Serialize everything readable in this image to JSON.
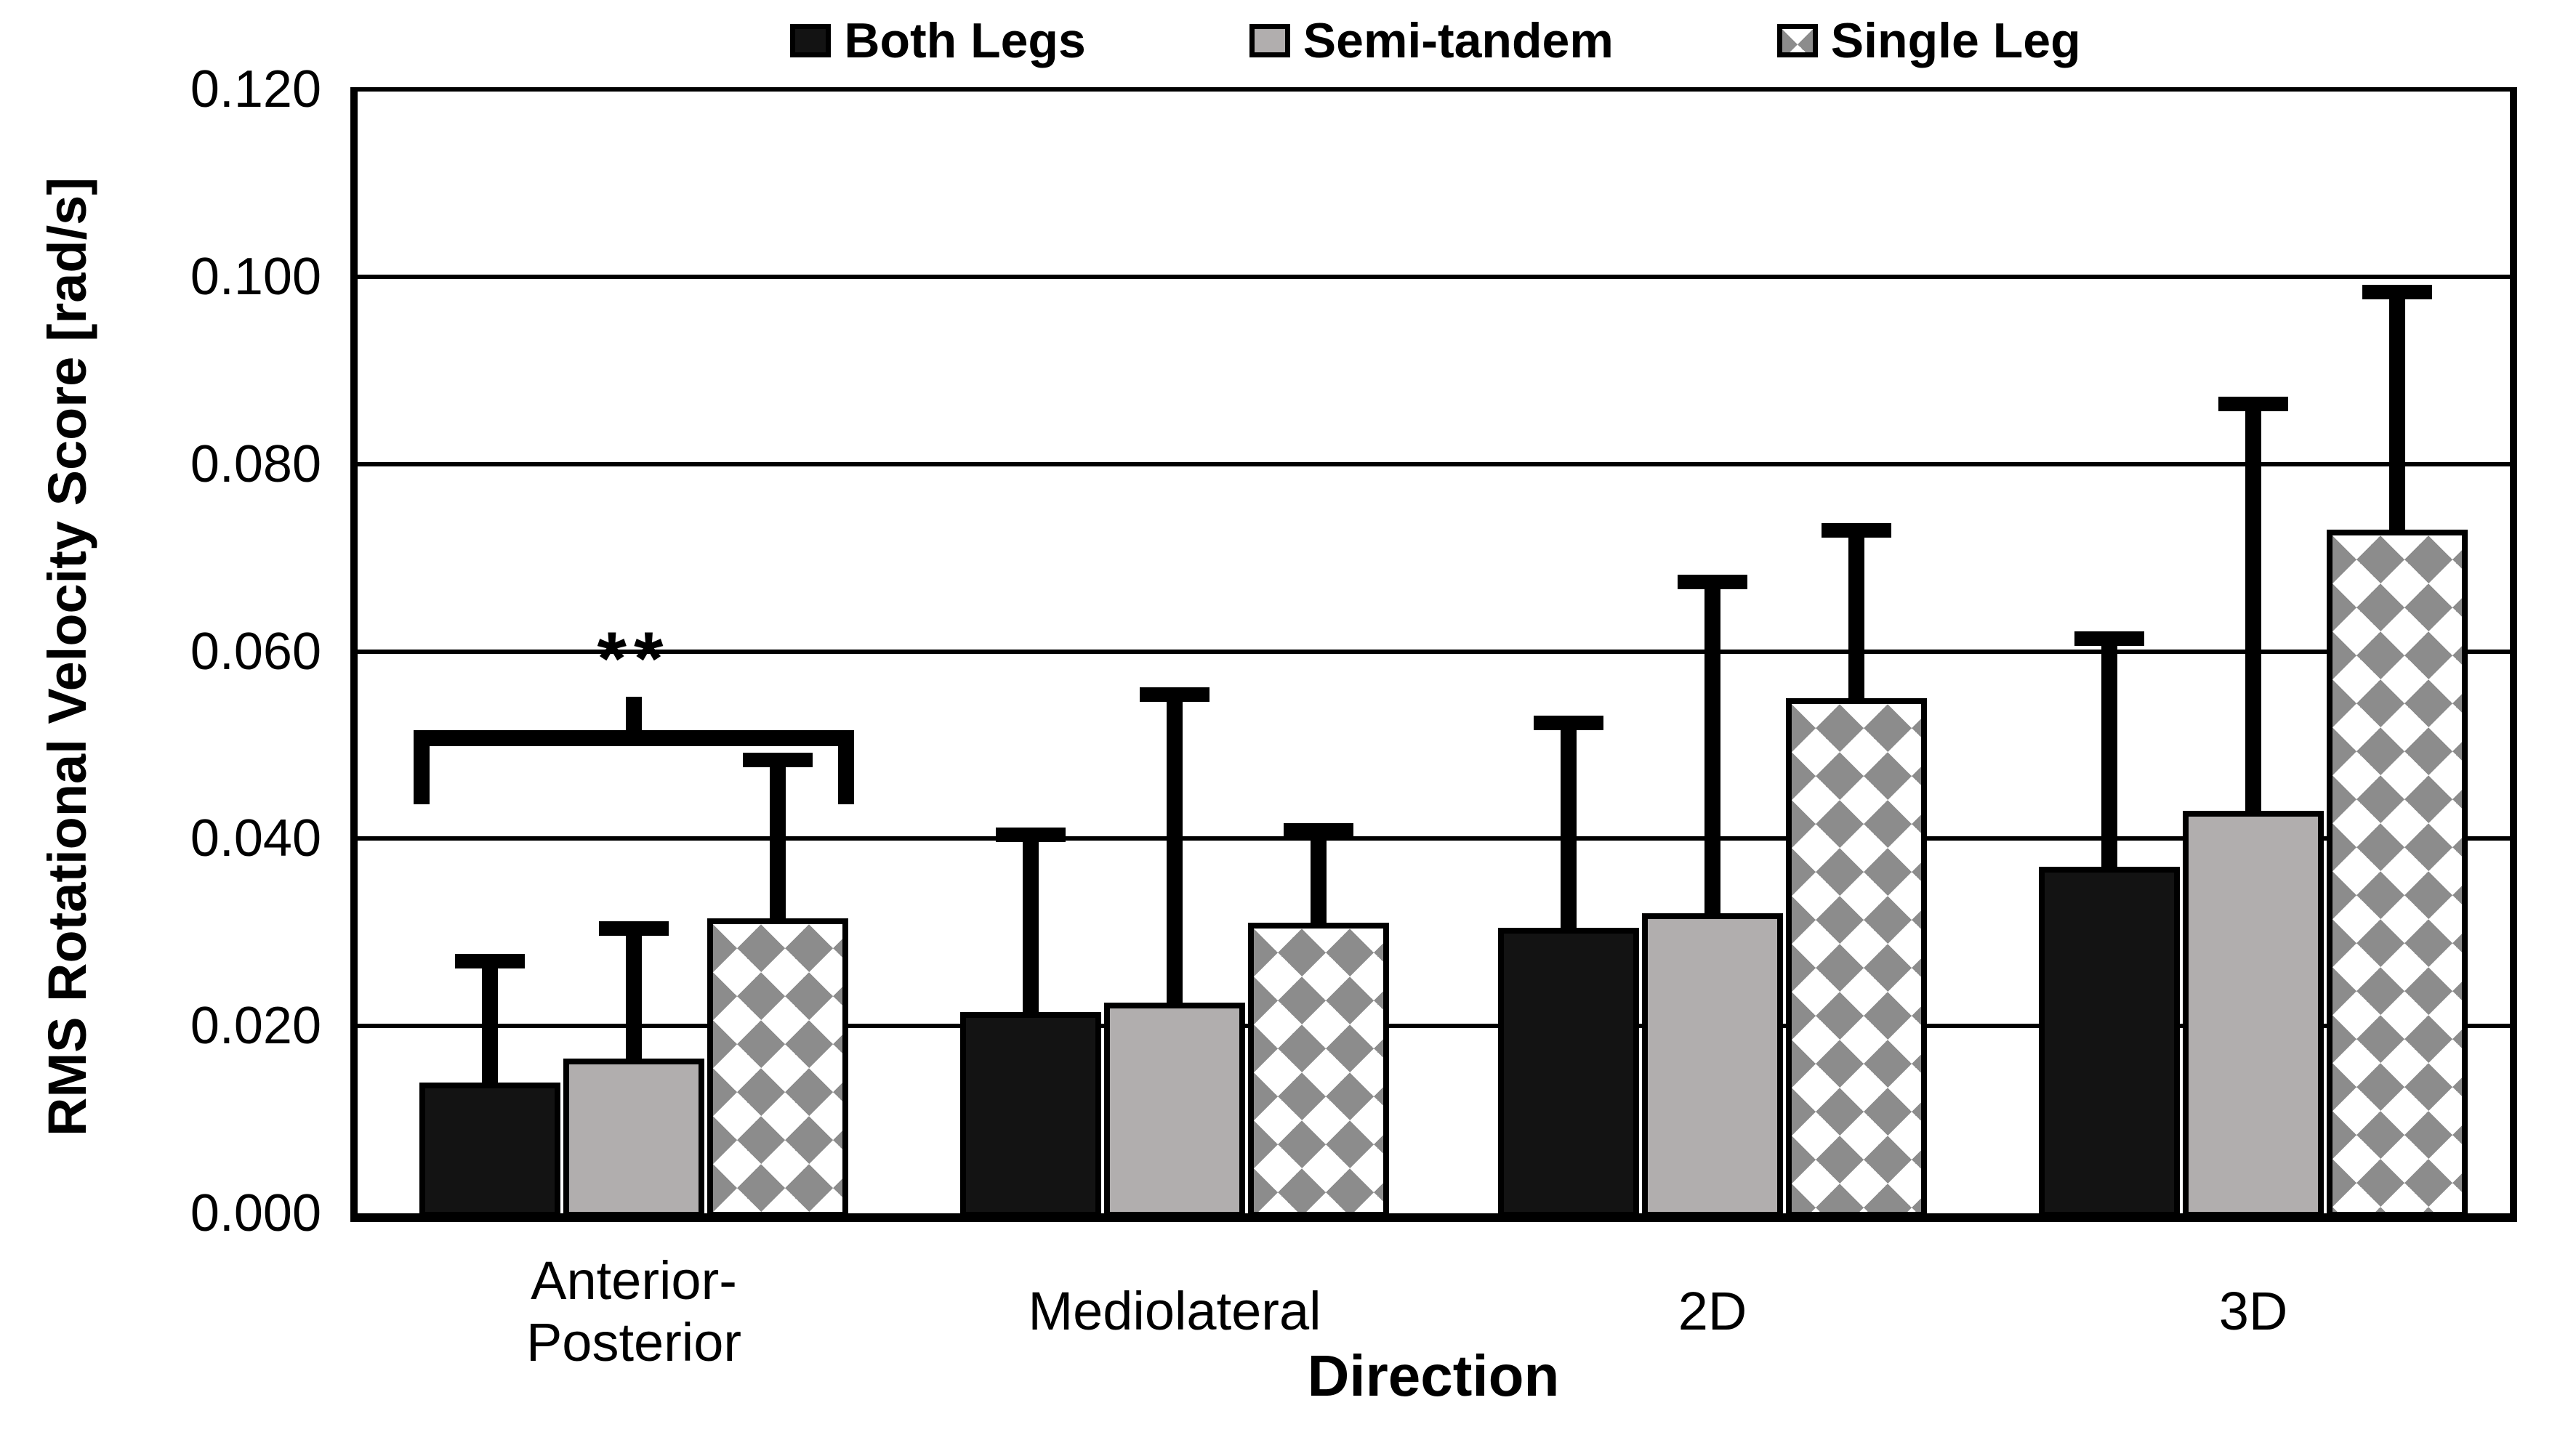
{
  "chart_data": {
    "type": "bar",
    "title": "",
    "xlabel": "Direction",
    "ylabel": "RMS Rotational Velocity Score [rad/s]",
    "categories": [
      "Anterior-\nPosterior",
      "Mediolateral",
      "2D",
      "3D"
    ],
    "series": [
      {
        "name": "Both Legs",
        "style": "solid-black-swatch",
        "values": [
          0.014,
          0.0215,
          0.0305,
          0.037
        ],
        "error_plus": [
          0.0135,
          0.0195,
          0.0225,
          0.025
        ]
      },
      {
        "name": "Semi-tandem",
        "style": "solid-gray-swatch",
        "values": [
          0.0165,
          0.0225,
          0.032,
          0.043
        ],
        "error_plus": [
          0.0145,
          0.0335,
          0.036,
          0.044
        ]
      },
      {
        "name": "Single Leg",
        "style": "diamond-pattern-swatch",
        "values": [
          0.0315,
          0.031,
          0.055,
          0.073
        ],
        "error_plus": [
          0.0175,
          0.0105,
          0.0185,
          0.026
        ]
      }
    ],
    "ylim": [
      0,
      0.12
    ],
    "y_tick_step": 0.02,
    "y_tick_labels": [
      "0.000",
      "0.020",
      "0.040",
      "0.060",
      "0.080",
      "0.100",
      "0.120"
    ],
    "grid": "horizontal",
    "legend_position": "top-center",
    "annotation": {
      "text": "**",
      "category_index": 0,
      "between_series": [
        "Both Legs",
        "Single Leg"
      ],
      "shape": "bracket-over-group"
    }
  },
  "colors": {
    "bar_both_legs": "#131313",
    "bar_semi_tandem": "#b1aeae",
    "bar_single_leg_pattern": "#8c8c8c",
    "bar_border": "#000000",
    "axis_and_grid": "#000000",
    "background": "#ffffff"
  }
}
